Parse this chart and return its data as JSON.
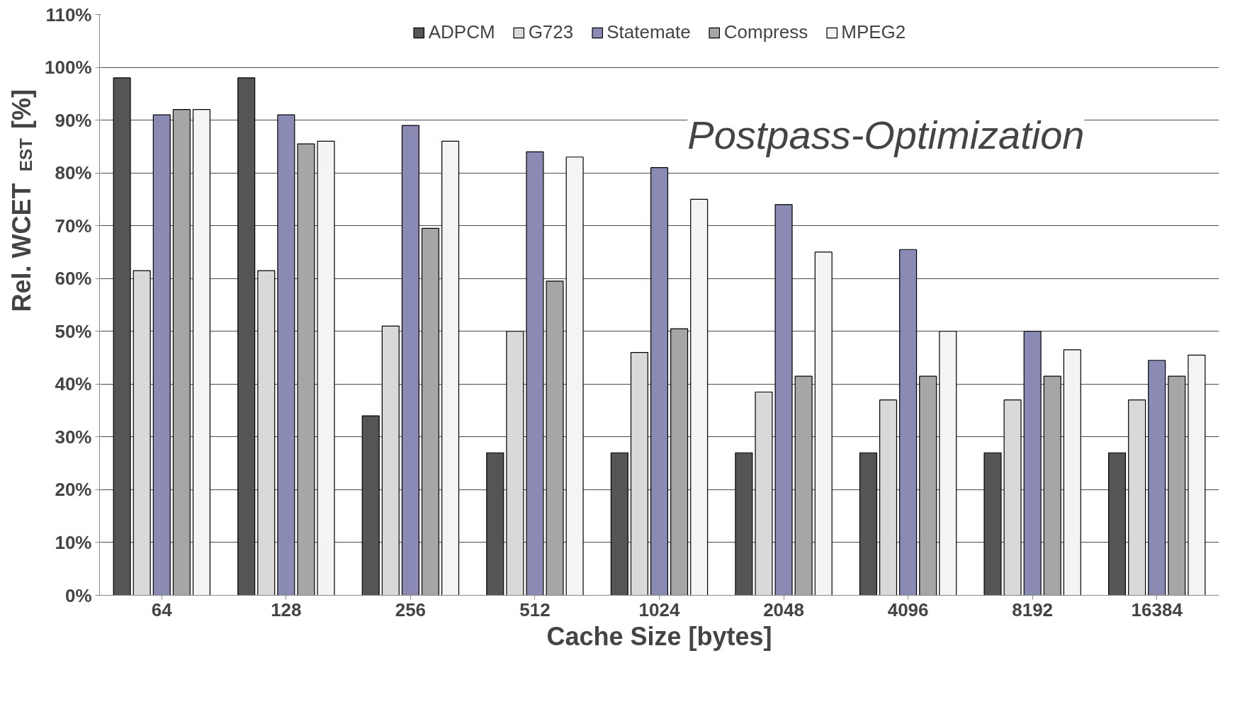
{
  "chart_data": {
    "type": "bar",
    "xlabel": "Cache Size [bytes]",
    "ylabel": "Rel. WCET$_{EST}$ [%]",
    "categories": [
      "64",
      "128",
      "256",
      "512",
      "1024",
      "2048",
      "4096",
      "8192",
      "16384"
    ],
    "series": [
      {
        "name": "ADPCM",
        "color": "#555555",
        "values": [
          98,
          98,
          34,
          27,
          27,
          27,
          27,
          27,
          27
        ]
      },
      {
        "name": "G723",
        "color": "#d9d9d9",
        "values": [
          61.5,
          61.5,
          51,
          50,
          46,
          38.5,
          37,
          37,
          37
        ]
      },
      {
        "name": "Statemate",
        "color": "#8a8ab4",
        "values": [
          91,
          91,
          89,
          84,
          81,
          74,
          65.5,
          50,
          44.5
        ]
      },
      {
        "name": "Compress",
        "color": "#a6a6a6",
        "values": [
          92,
          85.5,
          69.5,
          59.5,
          50.5,
          41.5,
          41.5,
          41.5,
          41.5
        ]
      },
      {
        "name": "MPEG2",
        "color": "#f4f4f4",
        "values": [
          92,
          86,
          86,
          83,
          75,
          65,
          50,
          46.5,
          45.5
        ]
      }
    ],
    "ylim": [
      0,
      110
    ],
    "yticks": [
      {
        "value": 0,
        "label": "0%"
      },
      {
        "value": 10,
        "label": "10%"
      },
      {
        "value": 20,
        "label": "20%"
      },
      {
        "value": 30,
        "label": "30%"
      },
      {
        "value": 40,
        "label": "40%"
      },
      {
        "value": 50,
        "label": "50%"
      },
      {
        "value": 60,
        "label": "60%"
      },
      {
        "value": 70,
        "label": "70%"
      },
      {
        "value": 80,
        "label": "80%"
      },
      {
        "value": 90,
        "label": "90%"
      },
      {
        "value": 100,
        "label": "100%"
      },
      {
        "value": 110,
        "label": "110%"
      }
    ],
    "grid": "y",
    "legend": "top",
    "annotations": [
      "Postpass-Optimization"
    ]
  }
}
